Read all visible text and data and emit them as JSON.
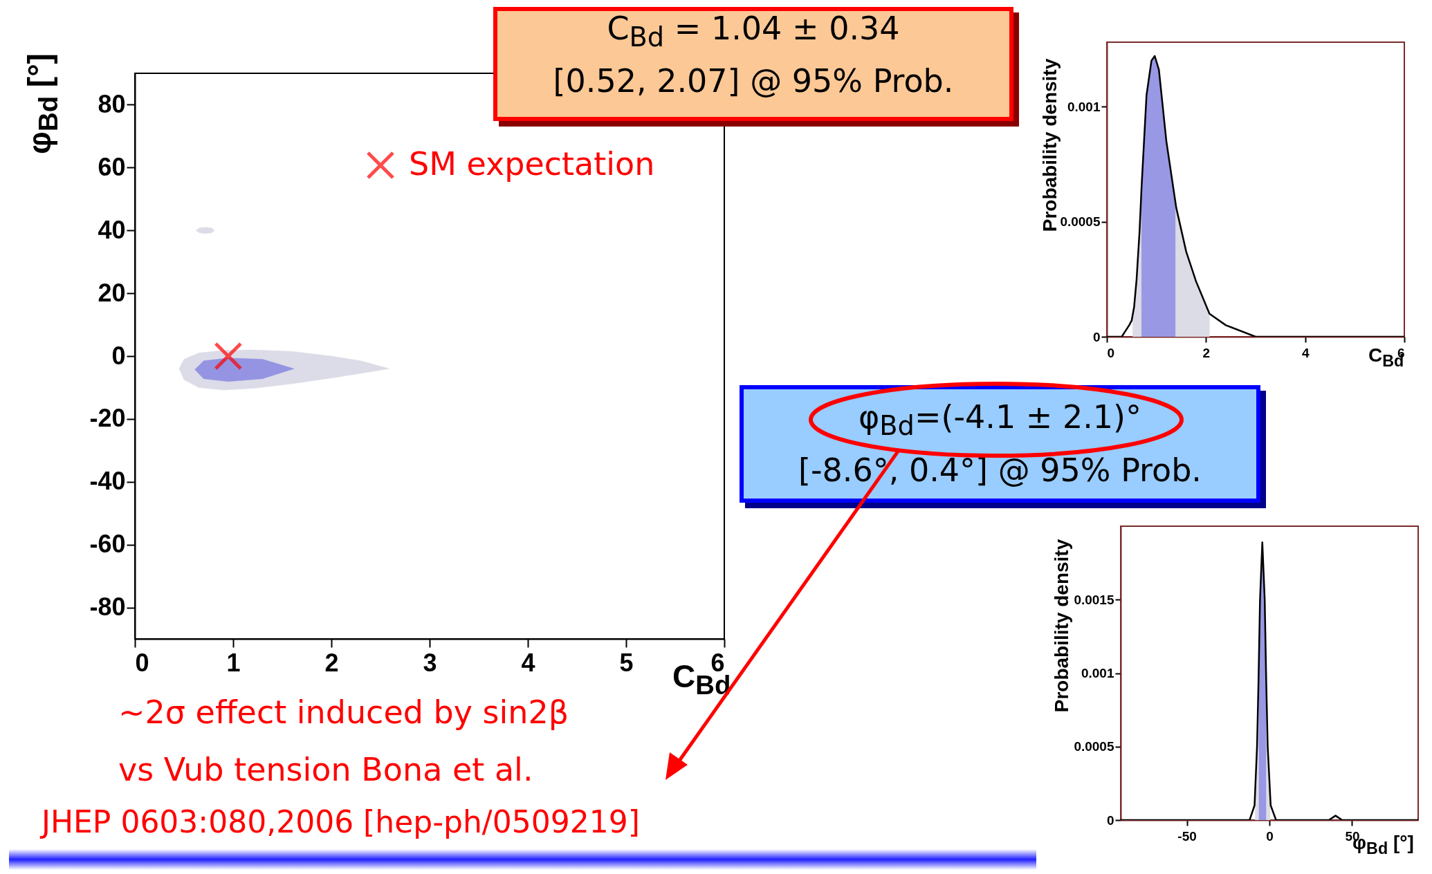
{
  "chart_data": [
    {
      "type": "area",
      "xlabel": "C$_{Bd}$",
      "ylabel": "φ$_{Bd}$ [°]",
      "xlim": [
        0,
        6
      ],
      "ylim": [
        -90,
        90
      ],
      "xticks": [
        0,
        1,
        2,
        3,
        4,
        5,
        6
      ],
      "yticks": [
        -80,
        -60,
        -40,
        -20,
        0,
        20,
        40,
        60,
        80
      ],
      "legend": "top right",
      "annotations": [
        "~2σ effect induced by sin2β",
        "vs Vub tension Bona et al.",
        "JHEP 0603:080,2006 [hep-ph/0509219]"
      ],
      "series": [
        {
          "color": "#dcdce8",
          "x": [
            0.45,
            0.5,
            0.65,
            0.9,
            1.2,
            1.6,
            2.0,
            2.3,
            2.59,
            2.3,
            2.0,
            1.6,
            1.2,
            0.9,
            0.65,
            0.5,
            0.45
          ],
          "values": [
            -4,
            -1,
            1,
            1.8,
            2,
            1.5,
            0,
            -1.5,
            -4,
            -5.5,
            -7,
            -8.8,
            -10.3,
            -10.8,
            -10,
            -7.5,
            -4
          ]
        },
        {
          "color": "#9494e2",
          "x": [
            0.61,
            0.7,
            0.95,
            1.3,
            1.62,
            1.3,
            0.95,
            0.7,
            0.61
          ],
          "values": [
            -4.3,
            -1.5,
            -0.6,
            -1,
            -4,
            -7.2,
            -8.1,
            -7.2,
            -4.3
          ]
        },
        {
          "color": "#dcdce8",
          "x": [
            0.62,
            0.66,
            0.72,
            0.78,
            0.81,
            0.78,
            0.72,
            0.66,
            0.62
          ],
          "values": [
            40,
            40.8,
            41,
            40.8,
            40,
            39.2,
            39,
            39.2,
            40
          ]
        },
        {
          "type": "scatter",
          "name": "SM expectation",
          "color": "#ff0000",
          "marker": "cross",
          "x": [
            0.95
          ],
          "values": [
            0
          ]
        }
      ]
    },
    {
      "type": "line",
      "xlabel": "C$_{Bd}$",
      "ylabel": "Probability density",
      "xlim": [
        0,
        6
      ],
      "ylim": [
        0,
        0.00128
      ],
      "xticks": [
        0,
        2,
        4,
        6
      ],
      "yticks": [
        0,
        0.0005,
        0.001
      ],
      "annotations": [
        "C$_{Bd}$ = 1.04 ± 0.34",
        "[0.52, 2.07] @ 95% Prob."
      ],
      "series": [
        {
          "type": "area",
          "color": "#dcdce6",
          "x": [
            0.52,
            0.52,
            0.55,
            0.6,
            0.66,
            0.7,
            0.8,
            0.9,
            0.965,
            1.05,
            1.2,
            1.4,
            1.6,
            1.8,
            2.07,
            2.07
          ],
          "values": [
            0,
            0.0001,
            0.00013,
            0.00025,
            0.00046,
            0.00065,
            0.00105,
            0.0012,
            0.00122,
            0.00116,
            0.00085,
            0.00056,
            0.00037,
            0.00024,
            0.0001,
            0
          ]
        },
        {
          "type": "area",
          "color": "#9898e4",
          "x": [
            0.7,
            0.7,
            0.8,
            0.9,
            0.965,
            1.05,
            1.2,
            1.38,
            1.38
          ],
          "values": [
            0,
            0.00065,
            0.00105,
            0.0012,
            0.00122,
            0.00116,
            0.00085,
            0.00058,
            0
          ]
        },
        {
          "color": "#000000",
          "x": [
            0,
            0.3,
            0.45,
            0.5,
            0.55,
            0.6,
            0.66,
            0.7,
            0.8,
            0.9,
            0.965,
            1.05,
            1.2,
            1.4,
            1.6,
            1.8,
            2.07,
            2.4,
            3,
            4,
            5,
            6
          ],
          "values": [
            0,
            0,
            5e-05,
            7e-05,
            0.00013,
            0.00025,
            0.00046,
            0.00065,
            0.00105,
            0.0012,
            0.00122,
            0.00116,
            0.00085,
            0.00056,
            0.00037,
            0.00024,
            0.0001,
            5e-05,
            0,
            0,
            0,
            0
          ]
        }
      ]
    },
    {
      "type": "line",
      "xlabel": "φ$_{Bd}$ [°]",
      "ylabel": "Probability density",
      "xlim": [
        -90,
        90
      ],
      "ylim": [
        0,
        0.002
      ],
      "xticks": [
        -50,
        0,
        50
      ],
      "yticks": [
        0,
        0.0005,
        0.001,
        0.0015
      ],
      "annotations": [
        "φ$_{Bd}$=(-4.1 ± 2.1)°",
        "[-8.6°, 0.4°] @ 95% Prob."
      ],
      "series": [
        {
          "type": "area",
          "color": "#dcdce6",
          "x": [
            -8.6,
            -8.6,
            -7.5,
            -6.6,
            -5.7,
            -4.3,
            -2.85,
            -1.95,
            -1.05,
            0.4,
            0.4
          ],
          "values": [
            0,
            0.00018,
            0.0005,
            0.00095,
            0.0015,
            0.00189,
            0.0015,
            0.00095,
            0.0005,
            0.00015,
            0
          ]
        },
        {
          "type": "area",
          "color": "#9898e4",
          "x": [
            -6.3,
            -6.3,
            -5.7,
            -4.3,
            -2.85,
            -2.1,
            -2.1
          ],
          "values": [
            0,
            0.00115,
            0.0015,
            0.00189,
            0.0015,
            0.001,
            0
          ]
        },
        {
          "color": "#000000",
          "x": [
            -90,
            -12,
            -9,
            -7.5,
            -6.6,
            -5.7,
            -4.3,
            -2.85,
            -1.95,
            -1.05,
            0.75,
            4,
            36,
            40,
            44,
            90
          ],
          "values": [
            0,
            0,
            0.0001,
            0.0005,
            0.00095,
            0.0015,
            0.00189,
            0.0015,
            0.00095,
            0.0005,
            0.0001,
            0,
            0,
            3e-05,
            0,
            0
          ]
        }
      ]
    }
  ]
}
